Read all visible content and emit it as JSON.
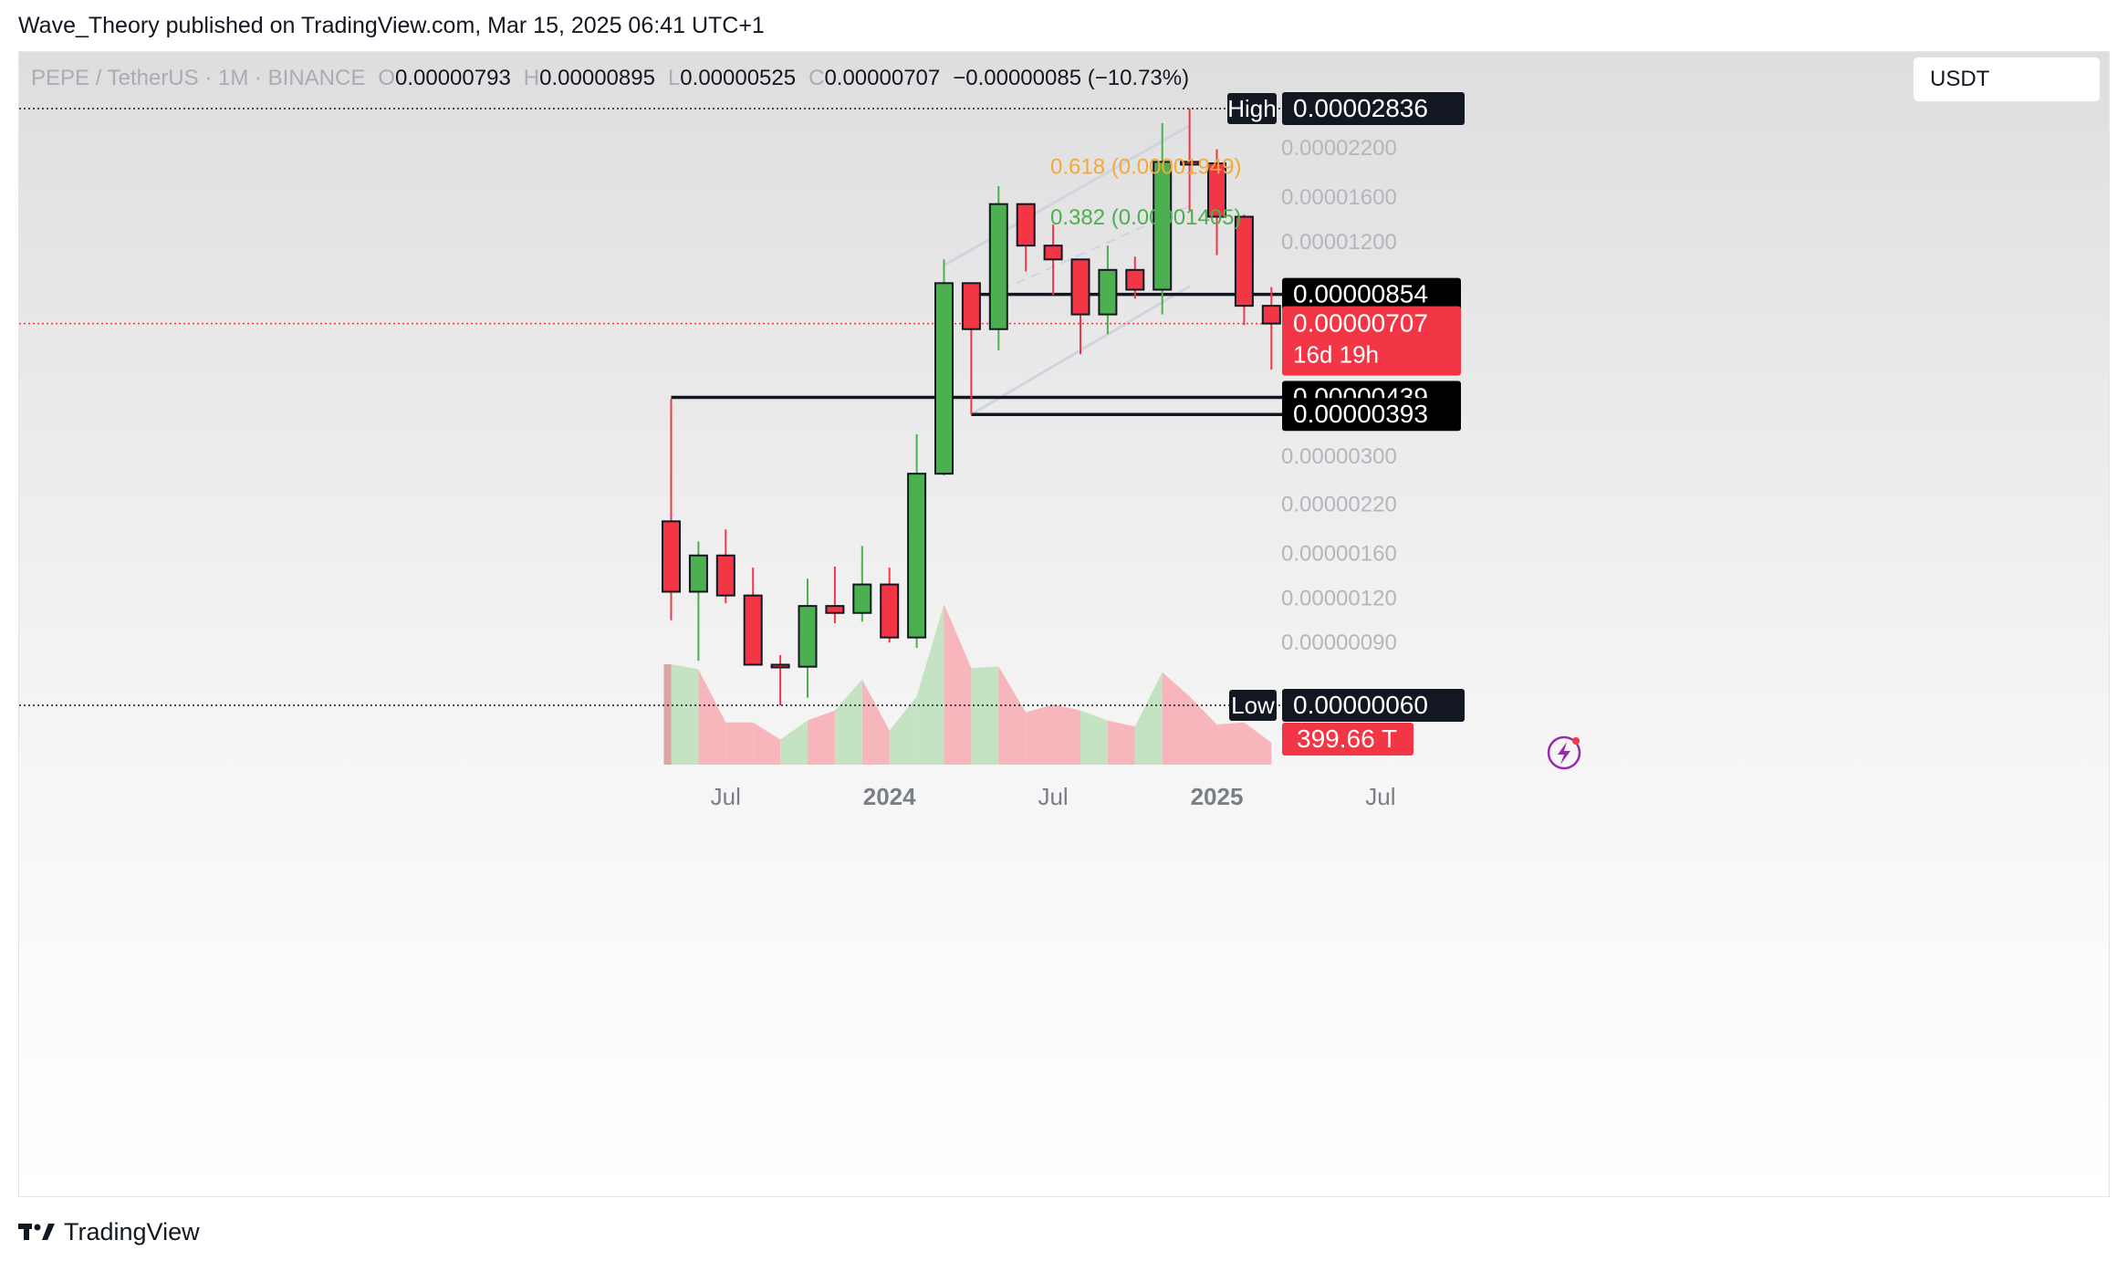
{
  "header": {
    "publisher_line": "Wave_Theory published on TradingView.com, Mar 15, 2025 06:41 UTC+1"
  },
  "legend": {
    "symbol": "PEPE / TetherUS · 1M · BINANCE",
    "open_key": "O",
    "open": "0.00000793",
    "high_key": "H",
    "high": "0.00000895",
    "low_key": "L",
    "low": "0.00000525",
    "close_key": "C",
    "close": "0.00000707",
    "change": "−0.00000085 (−10.73%)"
  },
  "currency": "USDT",
  "footer": {
    "brand": "TradingView"
  },
  "colors": {
    "up": "#4caf50",
    "down": "#f23645",
    "up_volume": "#c4e3c3",
    "down_volume": "#f7b6bc",
    "fib_618": "#f2a93b",
    "fib_382": "#4caf50",
    "channel": "#d0d4e0"
  },
  "chart_data": {
    "type": "candlestick",
    "scale": "log",
    "interval": "1M",
    "ylim": [
      6e-07,
      2.836e-05
    ],
    "x_ticks": [
      "Jul",
      "2024",
      "Jul",
      "2025",
      "Jul"
    ],
    "y_ticks": [
      "0.00002200",
      "0.00001600",
      "0.00001200",
      "0.00000300",
      "0.00000220",
      "0.00000160",
      "0.00000120",
      "0.00000090"
    ],
    "grid": false,
    "candles": [
      {
        "month": "2023-05",
        "open": 1.97e-06,
        "high": 4.35e-06,
        "low": 1.04e-06,
        "close": 1.25e-06
      },
      {
        "month": "2023-06",
        "open": 1.25e-06,
        "high": 1.73e-06,
        "low": 8e-07,
        "close": 1.58e-06
      },
      {
        "month": "2023-07",
        "open": 1.58e-06,
        "high": 1.87e-06,
        "low": 1.16e-06,
        "close": 1.22e-06
      },
      {
        "month": "2023-08",
        "open": 1.22e-06,
        "high": 1.46e-06,
        "low": 7.8e-07,
        "close": 7.8e-07
      },
      {
        "month": "2023-09",
        "open": 7.8e-07,
        "high": 8.3e-07,
        "low": 6e-07,
        "close": 7.7e-07
      },
      {
        "month": "2023-10",
        "open": 7.7e-07,
        "high": 1.36e-06,
        "low": 6.3e-07,
        "close": 1.14e-06
      },
      {
        "month": "2023-11",
        "open": 1.14e-06,
        "high": 1.47e-06,
        "low": 1.02e-06,
        "close": 1.09e-06
      },
      {
        "month": "2023-12",
        "open": 1.09e-06,
        "high": 1.68e-06,
        "low": 1.03e-06,
        "close": 1.31e-06
      },
      {
        "month": "2024-01",
        "open": 1.31e-06,
        "high": 1.46e-06,
        "low": 9e-07,
        "close": 9.3e-07
      },
      {
        "month": "2024-02",
        "open": 9.3e-07,
        "high": 3.46e-06,
        "low": 8.7e-07,
        "close": 2.68e-06
      },
      {
        "month": "2024-03",
        "open": 2.68e-06,
        "high": 1.07e-05,
        "low": 2.65e-06,
        "close": 9.18e-06
      },
      {
        "month": "2024-04",
        "open": 9.18e-06,
        "high": 9.18e-06,
        "low": 3.93e-06,
        "close": 6.82e-06
      },
      {
        "month": "2024-05",
        "open": 6.82e-06,
        "high": 1.72e-05,
        "low": 5.95e-06,
        "close": 1.53e-05
      },
      {
        "month": "2024-06",
        "open": 1.53e-05,
        "high": 1.53e-05,
        "low": 9.9e-06,
        "close": 1.17e-05
      },
      {
        "month": "2024-07",
        "open": 1.17e-05,
        "high": 1.34e-05,
        "low": 8.5e-06,
        "close": 1.07e-05
      },
      {
        "month": "2024-08",
        "open": 1.07e-05,
        "high": 1.07e-05,
        "low": 5.8e-06,
        "close": 7.5e-06
      },
      {
        "month": "2024-09",
        "open": 7.5e-06,
        "high": 1.17e-05,
        "low": 6.6e-06,
        "close": 1e-05
      },
      {
        "month": "2024-10",
        "open": 1e-05,
        "high": 1.09e-05,
        "low": 8.3e-06,
        "close": 8.8e-06
      },
      {
        "month": "2024-11",
        "open": 8.8e-06,
        "high": 2.58e-05,
        "low": 7.5e-06,
        "close": 2.01e-05
      },
      {
        "month": "2024-12",
        "open": 2.01e-05,
        "high": 2.836e-05,
        "low": 1.47e-05,
        "close": 1.99e-05
      },
      {
        "month": "2025-01",
        "open": 1.99e-05,
        "high": 2.18e-05,
        "low": 1.1e-05,
        "close": 1.41e-05
      },
      {
        "month": "2025-02",
        "open": 1.41e-05,
        "high": 1.43e-05,
        "low": 7e-06,
        "close": 7.93e-06
      },
      {
        "month": "2025-03",
        "open": 7.93e-06,
        "high": 8.95e-06,
        "low": 5.25e-06,
        "close": 7.07e-06
      }
    ],
    "volume_relative": [
      1.0,
      0.95,
      0.42,
      0.42,
      0.25,
      0.44,
      0.54,
      0.85,
      0.34,
      0.68,
      1.6,
      0.96,
      0.98,
      0.52,
      0.6,
      0.54,
      0.44,
      0.38,
      0.92,
      0.68,
      0.4,
      0.42,
      0.22
    ],
    "horizontal_levels": [
      {
        "label": "0.00000854",
        "value": 8.54e-06
      },
      {
        "label": "0.00000439",
        "value": 4.39e-06
      },
      {
        "label": "0.00000393",
        "value": 3.93e-06
      }
    ],
    "high_marker": {
      "label": "High",
      "value_label": "0.00002836",
      "value": 2.836e-05
    },
    "low_marker": {
      "label": "Low",
      "value_label": "0.00000060",
      "value": 6e-07
    },
    "current_price": {
      "value_label": "0.00000707",
      "countdown": "16d 19h",
      "value": 7.07e-06
    },
    "volume_badge": "399.66 T",
    "fib_levels": [
      {
        "label": "0.618 (0.00001949)",
        "value": 1.949e-05
      },
      {
        "label": "0.382 (0.00001405)",
        "value": 1.405e-05
      }
    ]
  }
}
